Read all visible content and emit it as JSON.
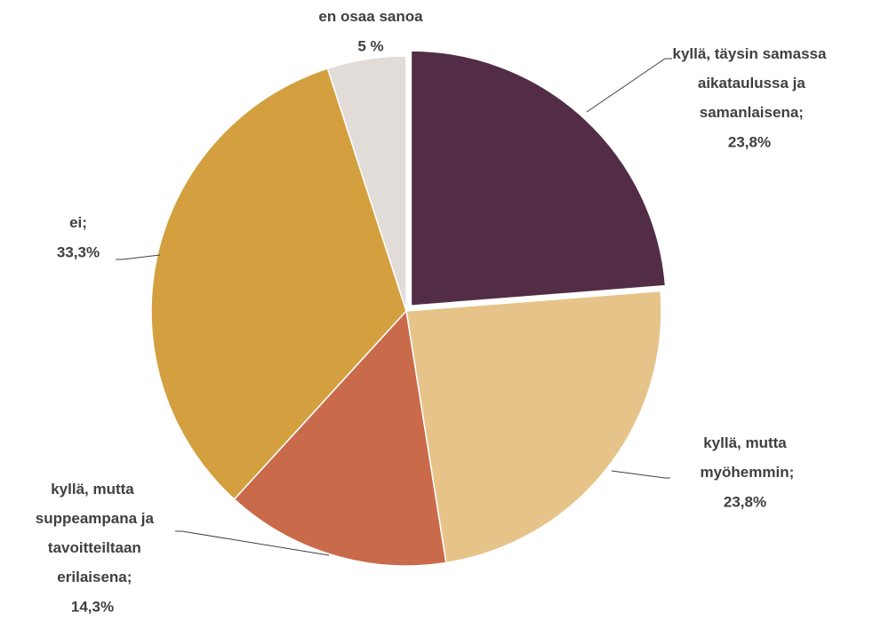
{
  "chart_data": {
    "type": "pie",
    "categories": [
      "kyllä, täysin samassa aikataulussa ja samanlaisena;",
      "kyllä, mutta myöhemmin;",
      "kyllä, mutta suppeampana ja tavoitteiltaan erilaisena;",
      "ei;",
      "en osaa sanoa"
    ],
    "values": [
      23.8,
      23.8,
      14.3,
      33.3,
      5
    ],
    "value_labels": [
      "23,8%",
      "23,8%",
      "14,3%",
      "33,3%",
      "5 %"
    ],
    "colors": [
      "#522d45",
      "#e6c489",
      "#c96a4b",
      "#d4a03f",
      "#e2dcd9"
    ]
  }
}
